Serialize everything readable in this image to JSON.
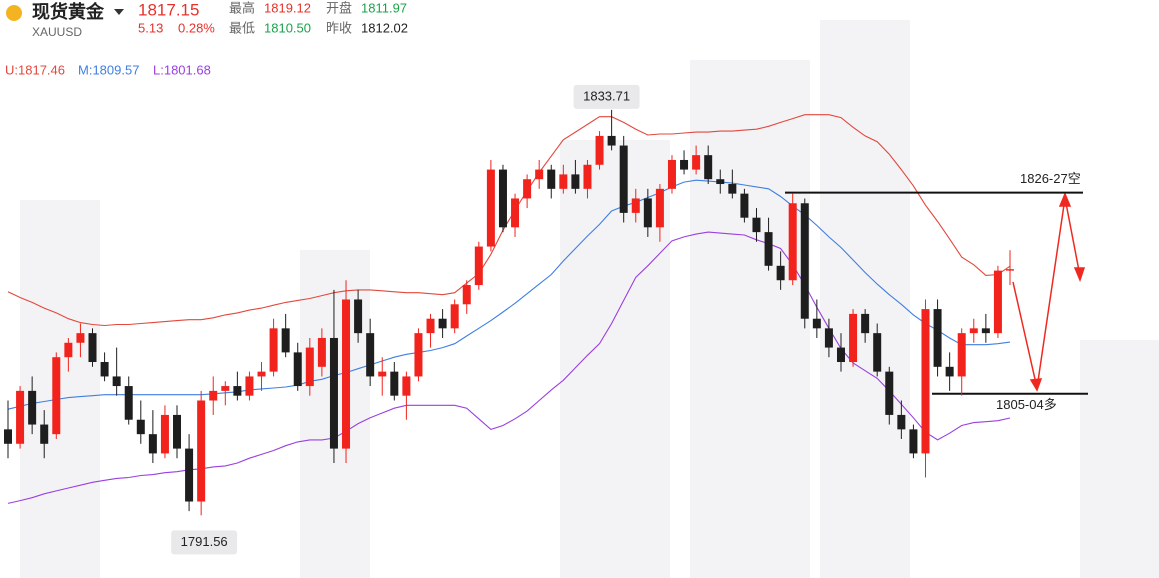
{
  "header": {
    "title": "现货黄金",
    "symbol": "XAUUSD",
    "price": "1817.15",
    "change": "5.13",
    "change_pct": "0.28%",
    "stats": [
      [
        "最高",
        "1819.12"
      ],
      [
        "开盘",
        "1811.97"
      ],
      [
        "最低",
        "1810.50"
      ],
      [
        "昨收",
        "1812.02"
      ]
    ]
  },
  "chart_data": {
    "type": "candlestick",
    "ylim": [
      1789,
      1836.5
    ],
    "up_color": "#f2221d",
    "down_color": "#1e1e1e",
    "open": [
      1800.5,
      1799,
      1804.5,
      1801,
      1800,
      1808,
      1809.5,
      1810.5,
      1807.5,
      1806,
      1805,
      1801.5,
      1800,
      1798,
      1802,
      1798.5,
      1793,
      1803.5,
      1804.5,
      1805,
      1804,
      1806,
      1806.5,
      1811,
      1808.5,
      1805,
      1807,
      1810,
      1798.5,
      1814,
      1810.5,
      1806,
      1806.5,
      1804,
      1806,
      1810.5,
      1812,
      1811,
      1813.5,
      1815.5,
      1819.5,
      1827.5,
      1821.5,
      1824.5,
      1826.5,
      1827.5,
      1825.5,
      1827,
      1825.5,
      1828,
      1831,
      1830,
      1823,
      1824.5,
      1821.5,
      1825.5,
      1828.5,
      1827.5,
      1829,
      1826.5,
      1826,
      1825,
      1822.5,
      1821,
      1817.5,
      1816,
      1824,
      1812,
      1811,
      1809,
      1807.5,
      1812.5,
      1810.5,
      1806.5,
      1802,
      1800.5,
      1798,
      1813,
      1807,
      1806,
      1810.5,
      1811,
      1810.5,
      1817
    ],
    "high": [
      1803.5,
      1805,
      1806,
      1802.5,
      1808.5,
      1810,
      1811.5,
      1811,
      1808.5,
      1809,
      1806,
      1803.5,
      1802.5,
      1803,
      1803,
      1800,
      1804.5,
      1806,
      1805.5,
      1806.5,
      1806.5,
      1807.5,
      1812,
      1812.5,
      1809.5,
      1810,
      1811,
      1815,
      1816,
      1815,
      1812,
      1808,
      1807.5,
      1806.5,
      1811,
      1812.5,
      1813,
      1814,
      1816,
      1820,
      1828.5,
      1828,
      1825,
      1827,
      1828.5,
      1828,
      1828,
      1828.5,
      1828.5,
      1831.5,
      1833.71,
      1831,
      1825.5,
      1825.5,
      1826,
      1829,
      1829.5,
      1830,
      1830,
      1827.5,
      1827.5,
      1825.5,
      1823.5,
      1822.5,
      1819,
      1825,
      1824.5,
      1814,
      1812,
      1810.5,
      1813,
      1813,
      1811.5,
      1807,
      1803.5,
      1801,
      1814,
      1814,
      1808.5,
      1811,
      1812,
      1812.5,
      1817.5,
      1819.12
    ],
    "low": [
      1797.5,
      1798.5,
      1800,
      1797.5,
      1799.5,
      1806.5,
      1808,
      1807,
      1805.5,
      1804,
      1801,
      1799,
      1797,
      1797.5,
      1797.5,
      1792,
      1791.56,
      1802,
      1803,
      1803.5,
      1803.5,
      1804.5,
      1806,
      1808,
      1804.5,
      1804,
      1806,
      1797,
      1797,
      1809.5,
      1805,
      1804,
      1803.5,
      1801.5,
      1805.5,
      1809,
      1810,
      1810.5,
      1812.5,
      1815,
      1819,
      1821,
      1820.5,
      1823.5,
      1825.5,
      1824.5,
      1825,
      1825,
      1824.5,
      1827.5,
      1829.5,
      1822,
      1822,
      1820.5,
      1820,
      1825,
      1827,
      1827,
      1826,
      1825,
      1824.5,
      1822,
      1820,
      1817,
      1815,
      1815.5,
      1811,
      1810,
      1808,
      1806.5,
      1807,
      1809.5,
      1806,
      1801,
      1799.5,
      1797.5,
      1795.5,
      1806,
      1804.5,
      1804,
      1809.5,
      1809.5,
      1810,
      1815.5
    ],
    "close": [
      1799,
      1804.5,
      1801,
      1799,
      1808,
      1809.5,
      1810.5,
      1807.5,
      1806,
      1805,
      1801.5,
      1800,
      1798,
      1802,
      1798.5,
      1793,
      1803.5,
      1804.5,
      1805,
      1804,
      1806,
      1806.5,
      1811,
      1808.5,
      1805,
      1809,
      1810,
      1798.5,
      1814,
      1810.5,
      1806,
      1806.5,
      1804,
      1806,
      1810.5,
      1812,
      1811,
      1813.5,
      1815.5,
      1819.5,
      1827.5,
      1821.5,
      1824.5,
      1826.5,
      1827.5,
      1825.5,
      1827,
      1825.5,
      1828,
      1831,
      1830,
      1823,
      1824.5,
      1821.5,
      1825.5,
      1828.5,
      1827.5,
      1829,
      1826.5,
      1826,
      1825,
      1822.5,
      1821,
      1817.5,
      1816,
      1824,
      1812,
      1811,
      1809,
      1807.5,
      1812.5,
      1810.5,
      1806.5,
      1802,
      1800.5,
      1798,
      1813,
      1807,
      1806,
      1810.5,
      1811,
      1810.5,
      1817,
      1817.15
    ],
    "series": [
      {
        "name": "U",
        "color": "#e2483c",
        "values": [
          1814.8,
          1814.2,
          1813.7,
          1813.1,
          1812.6,
          1812,
          1811.6,
          1811.4,
          1811.3,
          1811.4,
          1811.4,
          1811.5,
          1811.6,
          1811.7,
          1811.8,
          1811.9,
          1811.9,
          1812.1,
          1812.4,
          1812.6,
          1812.9,
          1813.1,
          1813.4,
          1813.7,
          1813.9,
          1814.1,
          1814.4,
          1814.7,
          1814.9,
          1815,
          1815,
          1814.9,
          1814.8,
          1814.7,
          1814.7,
          1814.6,
          1814.5,
          1814.7,
          1815.7,
          1816.7,
          1818.7,
          1821.2,
          1823.3,
          1825.3,
          1827.2,
          1828.9,
          1830.6,
          1831.4,
          1832.2,
          1833,
          1833,
          1832.4,
          1831.7,
          1831.1,
          1831.2,
          1831.2,
          1831.3,
          1831.4,
          1831.4,
          1831.5,
          1831.5,
          1831.6,
          1831.7,
          1832,
          1832.4,
          1832.8,
          1833.2,
          1833.2,
          1833.2,
          1832.9,
          1831.9,
          1831,
          1830.4,
          1829.1,
          1827.5,
          1825.8,
          1823.8,
          1822.1,
          1820.3,
          1818.4,
          1817.6,
          1816.5,
          1816.6,
          1817.46
        ]
      },
      {
        "name": "M",
        "color": "#3f7fe0",
        "values": [
          1802.6,
          1802.9,
          1803.2,
          1803.4,
          1803.6,
          1803.8,
          1803.9,
          1804,
          1804.1,
          1804.1,
          1804.1,
          1804.1,
          1804.1,
          1804.1,
          1804.1,
          1804.1,
          1804.1,
          1804.2,
          1804.3,
          1804.4,
          1804.6,
          1804.7,
          1804.8,
          1804.9,
          1805.1,
          1805.5,
          1805.7,
          1806.1,
          1806.4,
          1806.8,
          1807.2,
          1807.6,
          1808,
          1808.3,
          1808.5,
          1808.7,
          1809,
          1809.4,
          1810.2,
          1811,
          1811.8,
          1812.7,
          1813.6,
          1814.6,
          1815.6,
          1816.6,
          1818,
          1819.3,
          1820.6,
          1821.8,
          1823.2,
          1823.7,
          1824.1,
          1824.6,
          1825.1,
          1825.7,
          1826.2,
          1826.4,
          1826.3,
          1826.2,
          1826.1,
          1825.9,
          1825.7,
          1825.5,
          1824.7,
          1823.7,
          1822.8,
          1821.7,
          1820.5,
          1819.4,
          1818.1,
          1816.8,
          1815.6,
          1814.5,
          1813.5,
          1812.4,
          1811.5,
          1810.8,
          1810,
          1809.3,
          1809.3,
          1809.3,
          1809.4,
          1809.57
        ]
      },
      {
        "name": "L",
        "color": "#9a3fe0",
        "values": [
          1792.8,
          1793.1,
          1793.4,
          1793.8,
          1794.1,
          1794.4,
          1794.7,
          1795,
          1795.2,
          1795.4,
          1795.5,
          1795.7,
          1795.8,
          1796,
          1796.1,
          1796.3,
          1796.4,
          1796.6,
          1796.7,
          1797,
          1797.5,
          1797.9,
          1798.3,
          1798.8,
          1799.2,
          1799.4,
          1799.4,
          1799.6,
          1800.3,
          1801.1,
          1801.7,
          1802.2,
          1802.7,
          1803,
          1803,
          1803,
          1803,
          1803,
          1802.7,
          1801.6,
          1800.5,
          1800.9,
          1801.6,
          1802.4,
          1803.5,
          1804.6,
          1805.6,
          1806.9,
          1808.2,
          1809.4,
          1811.5,
          1813.9,
          1816.3,
          1817.5,
          1818.8,
          1820.1,
          1820.5,
          1820.8,
          1821,
          1820.9,
          1820.8,
          1820.7,
          1820.2,
          1819.8,
          1819.3,
          1817.6,
          1815.5,
          1813.2,
          1811,
          1808.9,
          1807.4,
          1806.6,
          1805.8,
          1804.5,
          1803.1,
          1801.7,
          1800.2,
          1799.4,
          1800.1,
          1800.9,
          1801.2,
          1801.3,
          1801.4,
          1801.68
        ]
      }
    ],
    "band_labels": [
      "U:1817.46",
      "M:1809.57",
      "L:1801.68"
    ],
    "high_label_index": 50,
    "low_label_index": 16,
    "levels": [
      {
        "value": 1825.1,
        "label": "1826-27空"
      },
      {
        "value": 1804.2,
        "label": "1805-04多"
      }
    ]
  }
}
